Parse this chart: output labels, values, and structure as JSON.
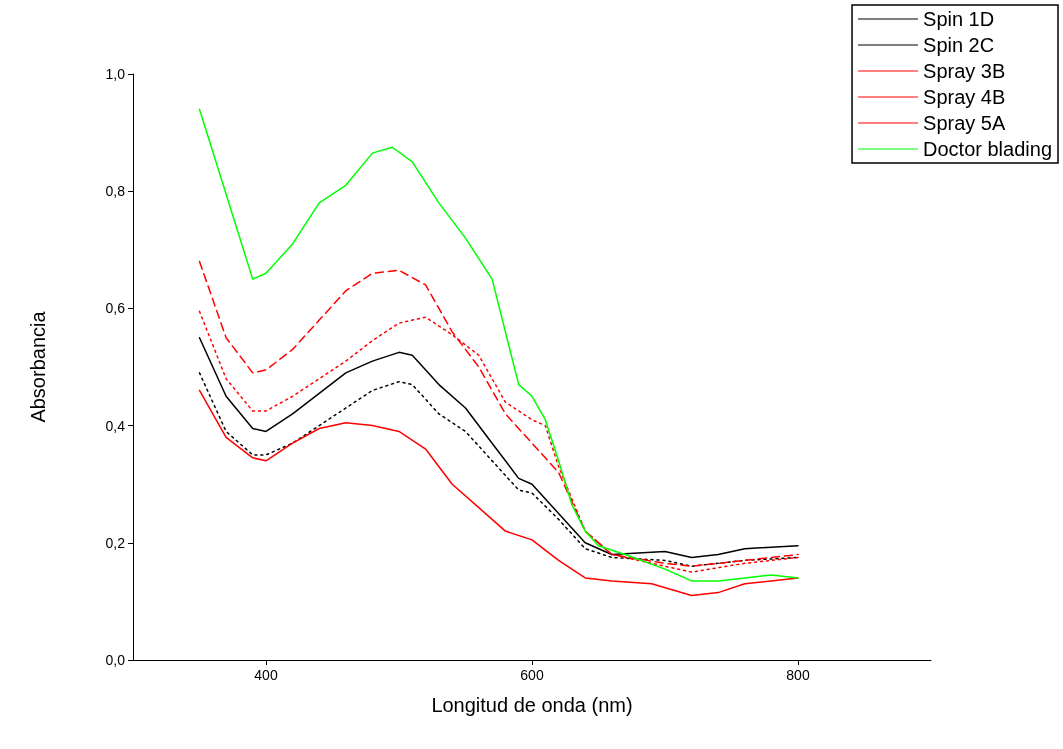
{
  "chart_data": {
    "type": "line",
    "xlabel": "Longitud de onda (nm)",
    "ylabel": "Absorbancia",
    "xlim": [
      300,
      900
    ],
    "xticks": [
      400,
      600,
      800
    ],
    "ylim": [
      0,
      1.0
    ],
    "yticks": [
      {
        "value": 0,
        "label": "0,0"
      },
      {
        "value": 0.2,
        "label": "0,2"
      },
      {
        "value": 0.4,
        "label": "0,4"
      },
      {
        "value": 0.6,
        "label": "0,6"
      },
      {
        "value": 0.8,
        "label": "0,8"
      },
      {
        "value": 1.0,
        "label": "1,0"
      }
    ],
    "grid": false,
    "legend": "top right",
    "marker": "none",
    "series": [
      {
        "name": "Spin 1D",
        "color": "#000000",
        "line_style": "solid",
        "x": [
          350,
          370,
          390,
          400,
          420,
          440,
          460,
          480,
          500,
          510,
          530,
          550,
          570,
          590,
          600,
          620,
          640,
          660,
          700,
          720,
          740,
          760,
          800
        ],
        "values": [
          0.55,
          0.45,
          0.395,
          0.39,
          0.42,
          0.455,
          0.49,
          0.51,
          0.525,
          0.52,
          0.47,
          0.43,
          0.37,
          0.31,
          0.3,
          0.25,
          0.2,
          0.18,
          0.185,
          0.175,
          0.18,
          0.19,
          0.195
        ]
      },
      {
        "name": "Spin 2C",
        "color": "#000000",
        "line_style": "dotted",
        "x": [
          350,
          370,
          390,
          400,
          420,
          440,
          460,
          480,
          500,
          510,
          530,
          550,
          570,
          590,
          600,
          620,
          640,
          660,
          700,
          720,
          760,
          800
        ],
        "values": [
          0.49,
          0.39,
          0.35,
          0.35,
          0.37,
          0.4,
          0.43,
          0.46,
          0.475,
          0.47,
          0.42,
          0.39,
          0.34,
          0.29,
          0.285,
          0.24,
          0.19,
          0.175,
          0.17,
          0.16,
          0.17,
          0.175
        ]
      },
      {
        "name": "Spray 3B",
        "color": "#ff0000",
        "line_style": "solid",
        "x": [
          350,
          370,
          390,
          400,
          420,
          440,
          460,
          480,
          500,
          520,
          540,
          560,
          580,
          600,
          620,
          640,
          660,
          690,
          720,
          740,
          760,
          800
        ],
        "values": [
          0.46,
          0.38,
          0.345,
          0.34,
          0.37,
          0.395,
          0.405,
          0.4,
          0.39,
          0.36,
          0.3,
          0.26,
          0.22,
          0.205,
          0.17,
          0.14,
          0.135,
          0.13,
          0.11,
          0.115,
          0.13,
          0.14
        ]
      },
      {
        "name": "Spray 4B",
        "color": "#ff0000",
        "line_style": "dotted",
        "x": [
          350,
          370,
          390,
          400,
          420,
          440,
          460,
          480,
          500,
          520,
          540,
          560,
          580,
          600,
          610,
          620,
          640,
          660,
          700,
          720,
          760,
          800
        ],
        "values": [
          0.595,
          0.48,
          0.425,
          0.425,
          0.45,
          0.48,
          0.51,
          0.545,
          0.575,
          0.585,
          0.555,
          0.52,
          0.44,
          0.41,
          0.4,
          0.33,
          0.22,
          0.18,
          0.16,
          0.15,
          0.165,
          0.175
        ]
      },
      {
        "name": "Spray 5A",
        "color": "#ff0000",
        "line_style": "dashed",
        "x": [
          350,
          370,
          390,
          400,
          420,
          440,
          460,
          480,
          500,
          520,
          540,
          560,
          580,
          600,
          620,
          640,
          660,
          700,
          720,
          760,
          800
        ],
        "values": [
          0.68,
          0.55,
          0.49,
          0.495,
          0.53,
          0.58,
          0.63,
          0.66,
          0.665,
          0.64,
          0.56,
          0.5,
          0.42,
          0.37,
          0.32,
          0.22,
          0.18,
          0.165,
          0.16,
          0.17,
          0.18
        ]
      },
      {
        "name": "Doctor blading",
        "color": "#00ff00",
        "line_style": "solid",
        "x": [
          350,
          390,
          400,
          420,
          440,
          460,
          480,
          495,
          510,
          530,
          550,
          570,
          590,
          600,
          610,
          620,
          630,
          640,
          650,
          670,
          700,
          720,
          740,
          760,
          780,
          800
        ],
        "values": [
          0.94,
          0.65,
          0.66,
          0.71,
          0.78,
          0.81,
          0.865,
          0.875,
          0.85,
          0.78,
          0.72,
          0.65,
          0.47,
          0.45,
          0.41,
          0.34,
          0.265,
          0.22,
          0.195,
          0.18,
          0.155,
          0.135,
          0.135,
          0.14,
          0.145,
          0.14
        ]
      }
    ]
  }
}
